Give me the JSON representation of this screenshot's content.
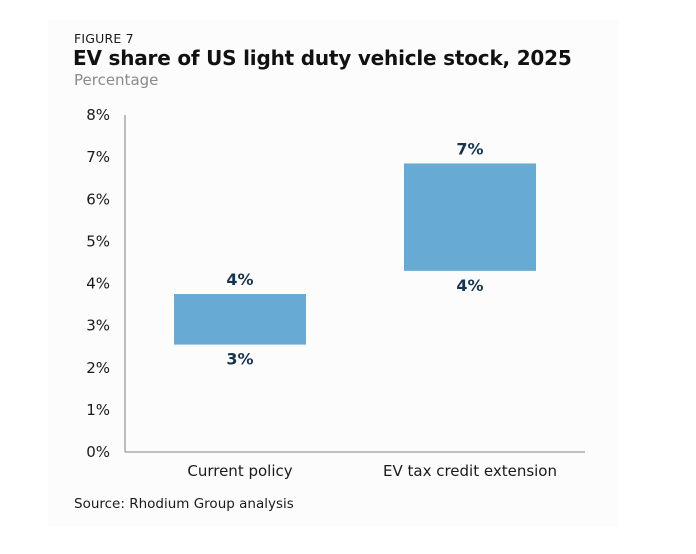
{
  "figure_label": "FIGURE 7",
  "source": "Source: Rhodium Group analysis",
  "colors": {
    "bar": "#67aad3",
    "label": "#17354f",
    "axis": "#9a9a9a"
  },
  "chart_data": {
    "type": "bar",
    "subtype": "floating-range",
    "title": "EV share of US light duty vehicle stock, 2025",
    "subtitle": "Percentage",
    "xlabel": "",
    "ylabel": "",
    "ylim": [
      0,
      8
    ],
    "yticks": [
      0,
      1,
      2,
      3,
      4,
      5,
      6,
      7,
      8
    ],
    "ytick_labels": [
      "0%",
      "1%",
      "2%",
      "3%",
      "4%",
      "5%",
      "6%",
      "7%",
      "8%"
    ],
    "grid": false,
    "legend": "none",
    "categories": [
      "Current policy",
      "EV tax credit extension"
    ],
    "series": [
      {
        "name": "low",
        "values": [
          2.55,
          4.3
        ]
      },
      {
        "name": "high",
        "values": [
          3.75,
          6.85
        ]
      }
    ],
    "data_labels": [
      {
        "high": "4%",
        "low": "3%"
      },
      {
        "high": "7%",
        "low": "4%"
      }
    ]
  }
}
